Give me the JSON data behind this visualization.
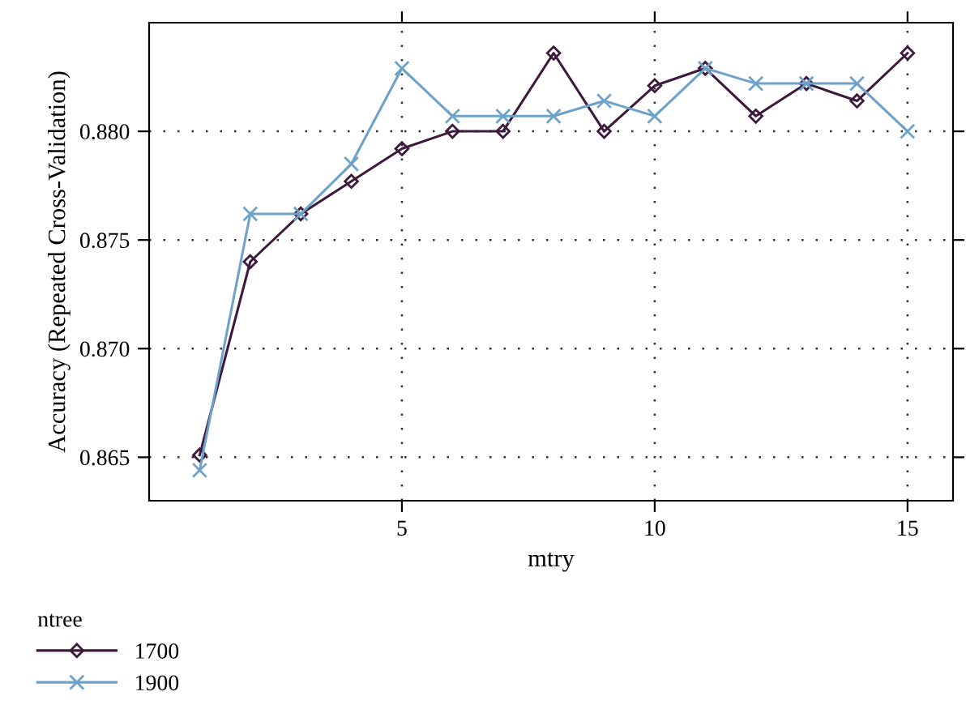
{
  "chart_data": {
    "type": "line",
    "xlabel": "mtry",
    "ylabel": "Accuracy (Repeated Cross-Validation)",
    "legend_title": "ntree",
    "x": [
      1,
      2,
      3,
      4,
      5,
      6,
      7,
      8,
      9,
      10,
      11,
      12,
      13,
      14,
      15
    ],
    "series": [
      {
        "name": "1700",
        "color": "#3d1a3d",
        "marker": "diamond",
        "values": [
          0.8651,
          0.874,
          0.8762,
          0.8777,
          0.8792,
          0.88,
          0.88,
          0.8836,
          0.88,
          0.8821,
          0.8829,
          0.8807,
          0.8822,
          0.8814,
          0.8836
        ]
      },
      {
        "name": "1900",
        "color": "#6fa2c8",
        "marker": "cross",
        "values": [
          0.8644,
          0.8762,
          0.8762,
          0.8785,
          0.8829,
          0.8807,
          0.8807,
          0.8807,
          0.8814,
          0.8807,
          0.8829,
          0.8822,
          0.8822,
          0.8822,
          0.88
        ]
      }
    ],
    "xlim": [
      0,
      15.9
    ],
    "ylim": [
      0.863,
      0.885
    ],
    "xticks": [
      5,
      10,
      15
    ],
    "yticks": [
      {
        "value": 0.865,
        "label": "0.865"
      },
      {
        "value": 0.87,
        "label": "0.870"
      },
      {
        "value": 0.875,
        "label": "0.875"
      },
      {
        "value": 0.88,
        "label": "0.880"
      }
    ],
    "grid": true,
    "legend": "bottom left",
    "line_style": "solid"
  }
}
